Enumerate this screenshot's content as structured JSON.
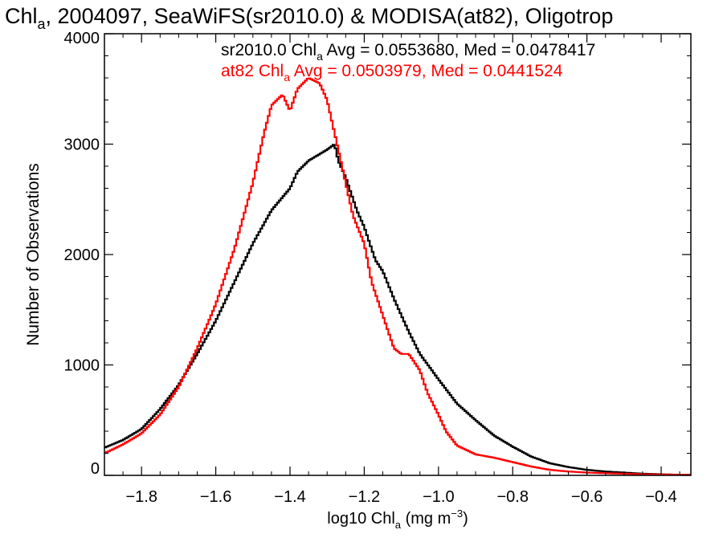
{
  "chart_data": {
    "type": "line",
    "title": {
      "prefix": "Chl",
      "sub": "a",
      "rest": ", 2004097, SeaWiFS(sr2010.0) & MODISA(at82), Oligotrop"
    },
    "xlabel": {
      "prefix": "log10 Chl",
      "sub": "a",
      "mid": " (mg m",
      "sup": "−3",
      "end": ")"
    },
    "ylabel": "Number of Observations",
    "xlim": [
      -1.9,
      -0.32
    ],
    "ylim": [
      0,
      4000
    ],
    "xticks": [
      -1.8,
      -1.6,
      -1.4,
      -1.2,
      -1.0,
      -0.8,
      -0.6,
      -0.4
    ],
    "xtick_labels": [
      "−1.8",
      "−1.6",
      "−1.4",
      "−1.2",
      "−1.0",
      "−0.8",
      "−0.6",
      "−0.4"
    ],
    "yticks": [
      0,
      1000,
      2000,
      3000,
      4000
    ],
    "ytick_labels": [
      "0",
      "1000",
      "2000",
      "3000",
      "4000"
    ],
    "series": [
      {
        "name": "sr2010.0",
        "color": "#000000",
        "legend": {
          "prefix": "sr2010.0 Chl",
          "sub": "a",
          "rest": " Avg = 0.0553680, Med = 0.0478417"
        },
        "x": [
          -1.9,
          -1.85,
          -1.8,
          -1.75,
          -1.7,
          -1.65,
          -1.6,
          -1.55,
          -1.5,
          -1.45,
          -1.4,
          -1.38,
          -1.35,
          -1.3,
          -1.28,
          -1.27,
          -1.25,
          -1.22,
          -1.2,
          -1.17,
          -1.15,
          -1.12,
          -1.1,
          -1.08,
          -1.05,
          -1.0,
          -0.95,
          -0.9,
          -0.85,
          -0.8,
          -0.75,
          -0.7,
          -0.65,
          -0.6,
          -0.55,
          -0.5,
          -0.45,
          -0.4,
          -0.35,
          -0.32
        ],
        "y": [
          250,
          320,
          420,
          600,
          820,
          1100,
          1400,
          1750,
          2100,
          2400,
          2600,
          2750,
          2850,
          2950,
          3000,
          2850,
          2700,
          2400,
          2250,
          1950,
          1850,
          1600,
          1450,
          1300,
          1100,
          870,
          650,
          500,
          360,
          260,
          170,
          110,
          75,
          50,
          35,
          25,
          15,
          10,
          5,
          5
        ]
      },
      {
        "name": "at82",
        "color": "#ff0000",
        "legend": {
          "prefix": "at82 Chl",
          "sub": "a",
          "rest": " Avg = 0.0503979, Med = 0.0441524"
        },
        "x": [
          -1.9,
          -1.85,
          -1.8,
          -1.75,
          -1.7,
          -1.65,
          -1.6,
          -1.55,
          -1.5,
          -1.47,
          -1.45,
          -1.42,
          -1.4,
          -1.38,
          -1.35,
          -1.32,
          -1.3,
          -1.28,
          -1.27,
          -1.25,
          -1.23,
          -1.2,
          -1.18,
          -1.15,
          -1.12,
          -1.1,
          -1.08,
          -1.05,
          -1.03,
          -1.0,
          -0.98,
          -0.95,
          -0.9,
          -0.85,
          -0.8,
          -0.75,
          -0.7,
          -0.65,
          -0.6,
          -0.55,
          -0.5,
          -0.45,
          -0.4,
          -0.35,
          -0.32
        ],
        "y": [
          200,
          280,
          380,
          550,
          800,
          1150,
          1550,
          2050,
          2650,
          3100,
          3350,
          3450,
          3300,
          3500,
          3600,
          3550,
          3400,
          3100,
          2950,
          2650,
          2350,
          2100,
          1750,
          1450,
          1150,
          1100,
          1100,
          950,
          750,
          550,
          400,
          270,
          190,
          160,
          120,
          80,
          50,
          35,
          25,
          20,
          15,
          10,
          8,
          5,
          5
        ]
      }
    ]
  }
}
